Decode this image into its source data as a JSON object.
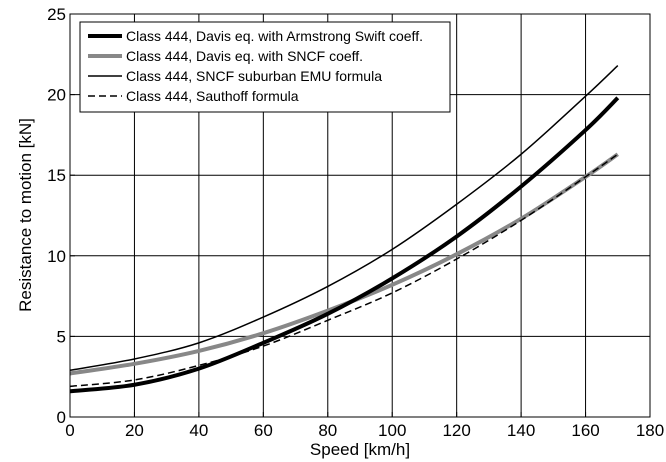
{
  "chart_data": {
    "type": "line",
    "title": "",
    "xlabel": "Speed [km/h]",
    "ylabel": "Resistance to motion [kN]",
    "xlim": [
      0,
      180
    ],
    "ylim": [
      0,
      25
    ],
    "xticks": [
      0,
      20,
      40,
      60,
      80,
      100,
      120,
      140,
      160,
      180
    ],
    "yticks": [
      0,
      5,
      10,
      15,
      20,
      25
    ],
    "grid": true,
    "legend_position": "top-left",
    "series": [
      {
        "name": "Class 444, Davis eq. with Armstrong Swift coeff.",
        "color": "#000000",
        "style": "thick-solid",
        "x": [
          0,
          20,
          40,
          60,
          80,
          100,
          120,
          140,
          160,
          170
        ],
        "y": [
          1.6,
          2.0,
          3.0,
          4.6,
          6.4,
          8.6,
          11.2,
          14.3,
          17.8,
          19.8
        ]
      },
      {
        "name": "Class 444, Davis eq. with SNCF coeff.",
        "color": "#888888",
        "style": "thick-solid",
        "x": [
          0,
          20,
          40,
          60,
          80,
          100,
          120,
          140,
          160,
          170
        ],
        "y": [
          2.7,
          3.3,
          4.1,
          5.2,
          6.6,
          8.2,
          10.1,
          12.3,
          14.9,
          16.3
        ]
      },
      {
        "name": "Class 444, SNCF suburban EMU formula",
        "color": "#000000",
        "style": "thin-solid",
        "x": [
          0,
          20,
          40,
          60,
          80,
          100,
          120,
          140,
          160,
          170
        ],
        "y": [
          2.9,
          3.6,
          4.6,
          6.2,
          8.1,
          10.4,
          13.2,
          16.3,
          19.9,
          21.8
        ]
      },
      {
        "name": "Class 444, Sauthoff formula",
        "color": "#000000",
        "style": "dashed",
        "x": [
          0,
          20,
          40,
          60,
          80,
          100,
          120,
          140,
          160,
          170
        ],
        "y": [
          1.9,
          2.3,
          3.2,
          4.4,
          6.0,
          7.7,
          9.8,
          12.2,
          14.9,
          16.3
        ]
      }
    ]
  }
}
